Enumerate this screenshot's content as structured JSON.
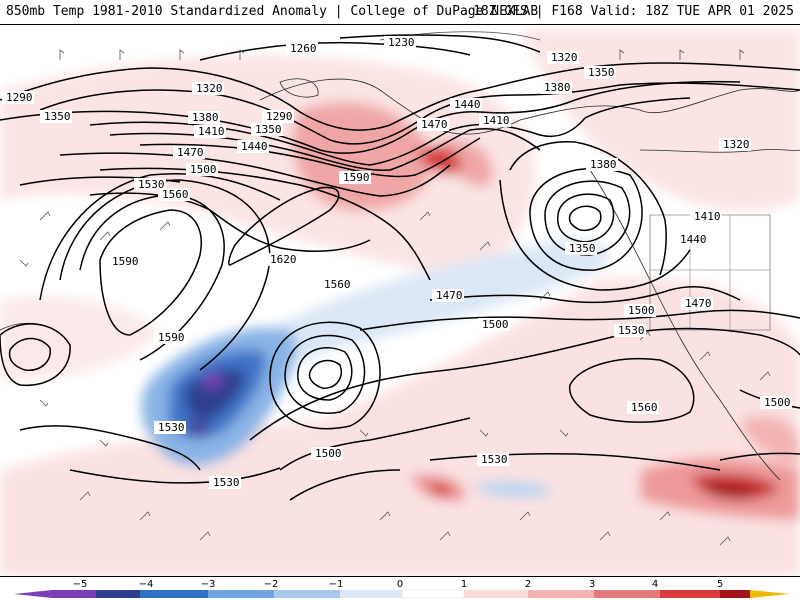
{
  "header": {
    "title_left": "850mb Temp 1981-2010 Standardized Anomaly | College of DuPage NEXLAB",
    "title_right": "18Z GFS | F168 Valid: 18Z TUE APR 01 2025"
  },
  "contour_labels": [
    "1260",
    "1230",
    "1320",
    "1350",
    "1380",
    "1290",
    "1320",
    "1350",
    "1380",
    "1410",
    "1350",
    "1290",
    "1440",
    "1470",
    "1410",
    "1440",
    "1470",
    "1500",
    "1590",
    "1530",
    "1560",
    "1620",
    "1590",
    "1380",
    "1350",
    "1320",
    "1410",
    "1440",
    "1470",
    "1560",
    "1470",
    "1500",
    "1590",
    "1500",
    "1530",
    "1530",
    "1560",
    "1500",
    "1500",
    "1530",
    "1530"
  ],
  "colorbar": {
    "ticks": [
      "−5",
      "−4",
      "−3",
      "−2",
      "−1",
      "0",
      "1",
      "2",
      "3",
      "4",
      "5"
    ],
    "colors": [
      "#7a3fb8",
      "#2e3f8f",
      "#2f6fc7",
      "#6fa6e0",
      "#a9c9ec",
      "#dde9f7",
      "#ffffff",
      "#f8dcdc",
      "#f3b3b3",
      "#e77a7a",
      "#d63a3a",
      "#a3121a",
      "#f2b800"
    ]
  }
}
